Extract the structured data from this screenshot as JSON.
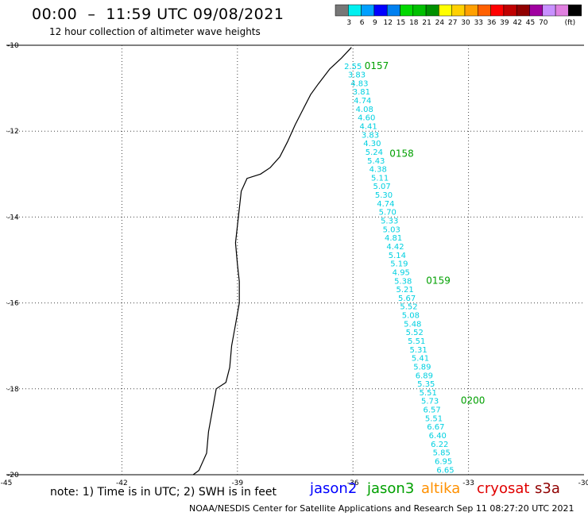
{
  "header": {
    "title": "00:00  –  11:59 UTC 09/08/2021",
    "subtitle": "12 hour collection of altimeter wave heights"
  },
  "legend": {
    "colors": [
      "#777777",
      "#00f0f0",
      "#00a0ff",
      "#0000ff",
      "#0080f0",
      "#00d800",
      "#00c000",
      "#009000",
      "#ffff00",
      "#ffd000",
      "#ffa000",
      "#ff6000",
      "#ff0000",
      "#c00000",
      "#900000",
      "#a000a0",
      "#c890ff",
      "#e080e0",
      "#000000"
    ],
    "labels": [
      "3",
      "6",
      "9",
      "12",
      "15",
      "18",
      "21",
      "24",
      "27",
      "30",
      "33",
      "36",
      "39",
      "42",
      "45",
      "70",
      "(ft)"
    ]
  },
  "map": {
    "lon_ticks": [
      "-45",
      "-42",
      "-39",
      "-36",
      "-33",
      "-30"
    ],
    "lat_ticks": [
      "-10",
      "-12",
      "-14",
      "-16",
      "-18",
      "-20"
    ],
    "lon_range": [
      -45,
      -30
    ],
    "lat_range": [
      -20,
      -10
    ],
    "swh_points": [
      {
        "lat": -10.55,
        "lon": -36.0,
        "v": "2.55",
        "c": "gray"
      },
      {
        "lat": -10.75,
        "lon": -35.9,
        "v": "3.83"
      },
      {
        "lat": -10.95,
        "lon": -35.83,
        "v": "4.83"
      },
      {
        "lat": -11.15,
        "lon": -35.78,
        "v": "3.81"
      },
      {
        "lat": -11.35,
        "lon": -35.75,
        "v": "4.74"
      },
      {
        "lat": -11.55,
        "lon": -35.7,
        "v": "4.08"
      },
      {
        "lat": -11.75,
        "lon": -35.65,
        "v": "4.60"
      },
      {
        "lat": -11.95,
        "lon": -35.6,
        "v": "4.41"
      },
      {
        "lat": -12.15,
        "lon": -35.55,
        "v": "3.83"
      },
      {
        "lat": -12.35,
        "lon": -35.5,
        "v": "4.30"
      },
      {
        "lat": -12.55,
        "lon": -35.45,
        "v": "5.24"
      },
      {
        "lat": -12.75,
        "lon": -35.4,
        "v": "5.43"
      },
      {
        "lat": -12.95,
        "lon": -35.35,
        "v": "4.38"
      },
      {
        "lat": -13.15,
        "lon": -35.3,
        "v": "5.11"
      },
      {
        "lat": -13.35,
        "lon": -35.25,
        "v": "5.07"
      },
      {
        "lat": -13.55,
        "lon": -35.2,
        "v": "5.30"
      },
      {
        "lat": -13.75,
        "lon": -35.15,
        "v": "4.74"
      },
      {
        "lat": -13.95,
        "lon": -35.1,
        "v": "5.70"
      },
      {
        "lat": -14.15,
        "lon": -35.05,
        "v": "5.33"
      },
      {
        "lat": -14.35,
        "lon": -35.0,
        "v": "5.03"
      },
      {
        "lat": -14.55,
        "lon": -34.95,
        "v": "4.81"
      },
      {
        "lat": -14.75,
        "lon": -34.9,
        "v": "4.42"
      },
      {
        "lat": -14.95,
        "lon": -34.85,
        "v": "5.14"
      },
      {
        "lat": -15.15,
        "lon": -34.8,
        "v": "5.19"
      },
      {
        "lat": -15.35,
        "lon": -34.75,
        "v": "4.95"
      },
      {
        "lat": -15.55,
        "lon": -34.7,
        "v": "5.38"
      },
      {
        "lat": -15.75,
        "lon": -34.65,
        "v": "5.21"
      },
      {
        "lat": -15.95,
        "lon": -34.6,
        "v": "5.67"
      },
      {
        "lat": -16.15,
        "lon": -34.55,
        "v": "5.52"
      },
      {
        "lat": -16.35,
        "lon": -34.5,
        "v": "5.08"
      },
      {
        "lat": -16.55,
        "lon": -34.45,
        "v": "5.48"
      },
      {
        "lat": -16.75,
        "lon": -34.4,
        "v": "5.52"
      },
      {
        "lat": -16.95,
        "lon": -34.35,
        "v": "5.51"
      },
      {
        "lat": -17.15,
        "lon": -34.3,
        "v": "5.31"
      },
      {
        "lat": -17.35,
        "lon": -34.25,
        "v": "5.41"
      },
      {
        "lat": -17.55,
        "lon": -34.2,
        "v": "5.89"
      },
      {
        "lat": -17.75,
        "lon": -34.15,
        "v": "6.89"
      },
      {
        "lat": -17.95,
        "lon": -34.1,
        "v": "5.35"
      },
      {
        "lat": -18.15,
        "lon": -34.05,
        "v": "5.51"
      },
      {
        "lat": -18.35,
        "lon": -34.0,
        "v": "5.73"
      },
      {
        "lat": -18.55,
        "lon": -33.95,
        "v": "6.57"
      },
      {
        "lat": -18.75,
        "lon": -33.9,
        "v": "5.51"
      },
      {
        "lat": -18.95,
        "lon": -33.85,
        "v": "6.67"
      },
      {
        "lat": -19.15,
        "lon": -33.8,
        "v": "6.40"
      },
      {
        "lat": -19.35,
        "lon": -33.75,
        "v": "6.22"
      },
      {
        "lat": -19.55,
        "lon": -33.7,
        "v": "5.85"
      },
      {
        "lat": -19.75,
        "lon": -33.65,
        "v": "6.95"
      },
      {
        "lat": -19.95,
        "lon": -33.6,
        "v": "6.65"
      }
    ],
    "time_labels": [
      {
        "lat": -10.55,
        "lon": -35.7,
        "v": "0157"
      },
      {
        "lat": -12.6,
        "lon": -35.05,
        "v": "0158"
      },
      {
        "lat": -15.55,
        "lon": -34.1,
        "v": "0159"
      },
      {
        "lat": -18.35,
        "lon": -33.2,
        "v": "0200"
      }
    ],
    "coastline": [
      [
        -36.04,
        -10.05
      ],
      [
        -36.3,
        -10.3
      ],
      [
        -36.6,
        -10.55
      ],
      [
        -36.9,
        -10.9
      ],
      [
        -37.1,
        -11.15
      ],
      [
        -37.3,
        -11.5
      ],
      [
        -37.5,
        -11.85
      ],
      [
        -37.7,
        -12.25
      ],
      [
        -37.9,
        -12.6
      ],
      [
        -38.15,
        -12.85
      ],
      [
        -38.4,
        -13.0
      ],
      [
        -38.75,
        -13.1
      ],
      [
        -38.9,
        -13.4
      ],
      [
        -38.95,
        -13.8
      ],
      [
        -39.0,
        -14.2
      ],
      [
        -39.05,
        -14.6
      ],
      [
        -39.0,
        -15.1
      ],
      [
        -38.95,
        -15.5
      ],
      [
        -38.95,
        -16.0
      ],
      [
        -39.05,
        -16.5
      ],
      [
        -39.15,
        -17.0
      ],
      [
        -39.2,
        -17.5
      ],
      [
        -39.3,
        -17.85
      ],
      [
        -39.55,
        -18.0
      ],
      [
        -39.65,
        -18.5
      ],
      [
        -39.75,
        -19.0
      ],
      [
        -39.8,
        -19.5
      ],
      [
        -40.0,
        -19.9
      ],
      [
        -40.15,
        -20.0
      ]
    ]
  },
  "note": "note:  1) Time is in UTC;  2) SWH is in feet",
  "satellites": [
    {
      "name": "jason2",
      "color": "#0000ff"
    },
    {
      "name": "jason3",
      "color": "#00a000"
    },
    {
      "name": "altika",
      "color": "#ff9000"
    },
    {
      "name": "cryosat",
      "color": "#e00000"
    },
    {
      "name": "s3a",
      "color": "#900000"
    }
  ],
  "footer": "NOAA/NESDIS Center for Satellite Applications and Research   Sep 11 08:27:20 UTC 2021"
}
